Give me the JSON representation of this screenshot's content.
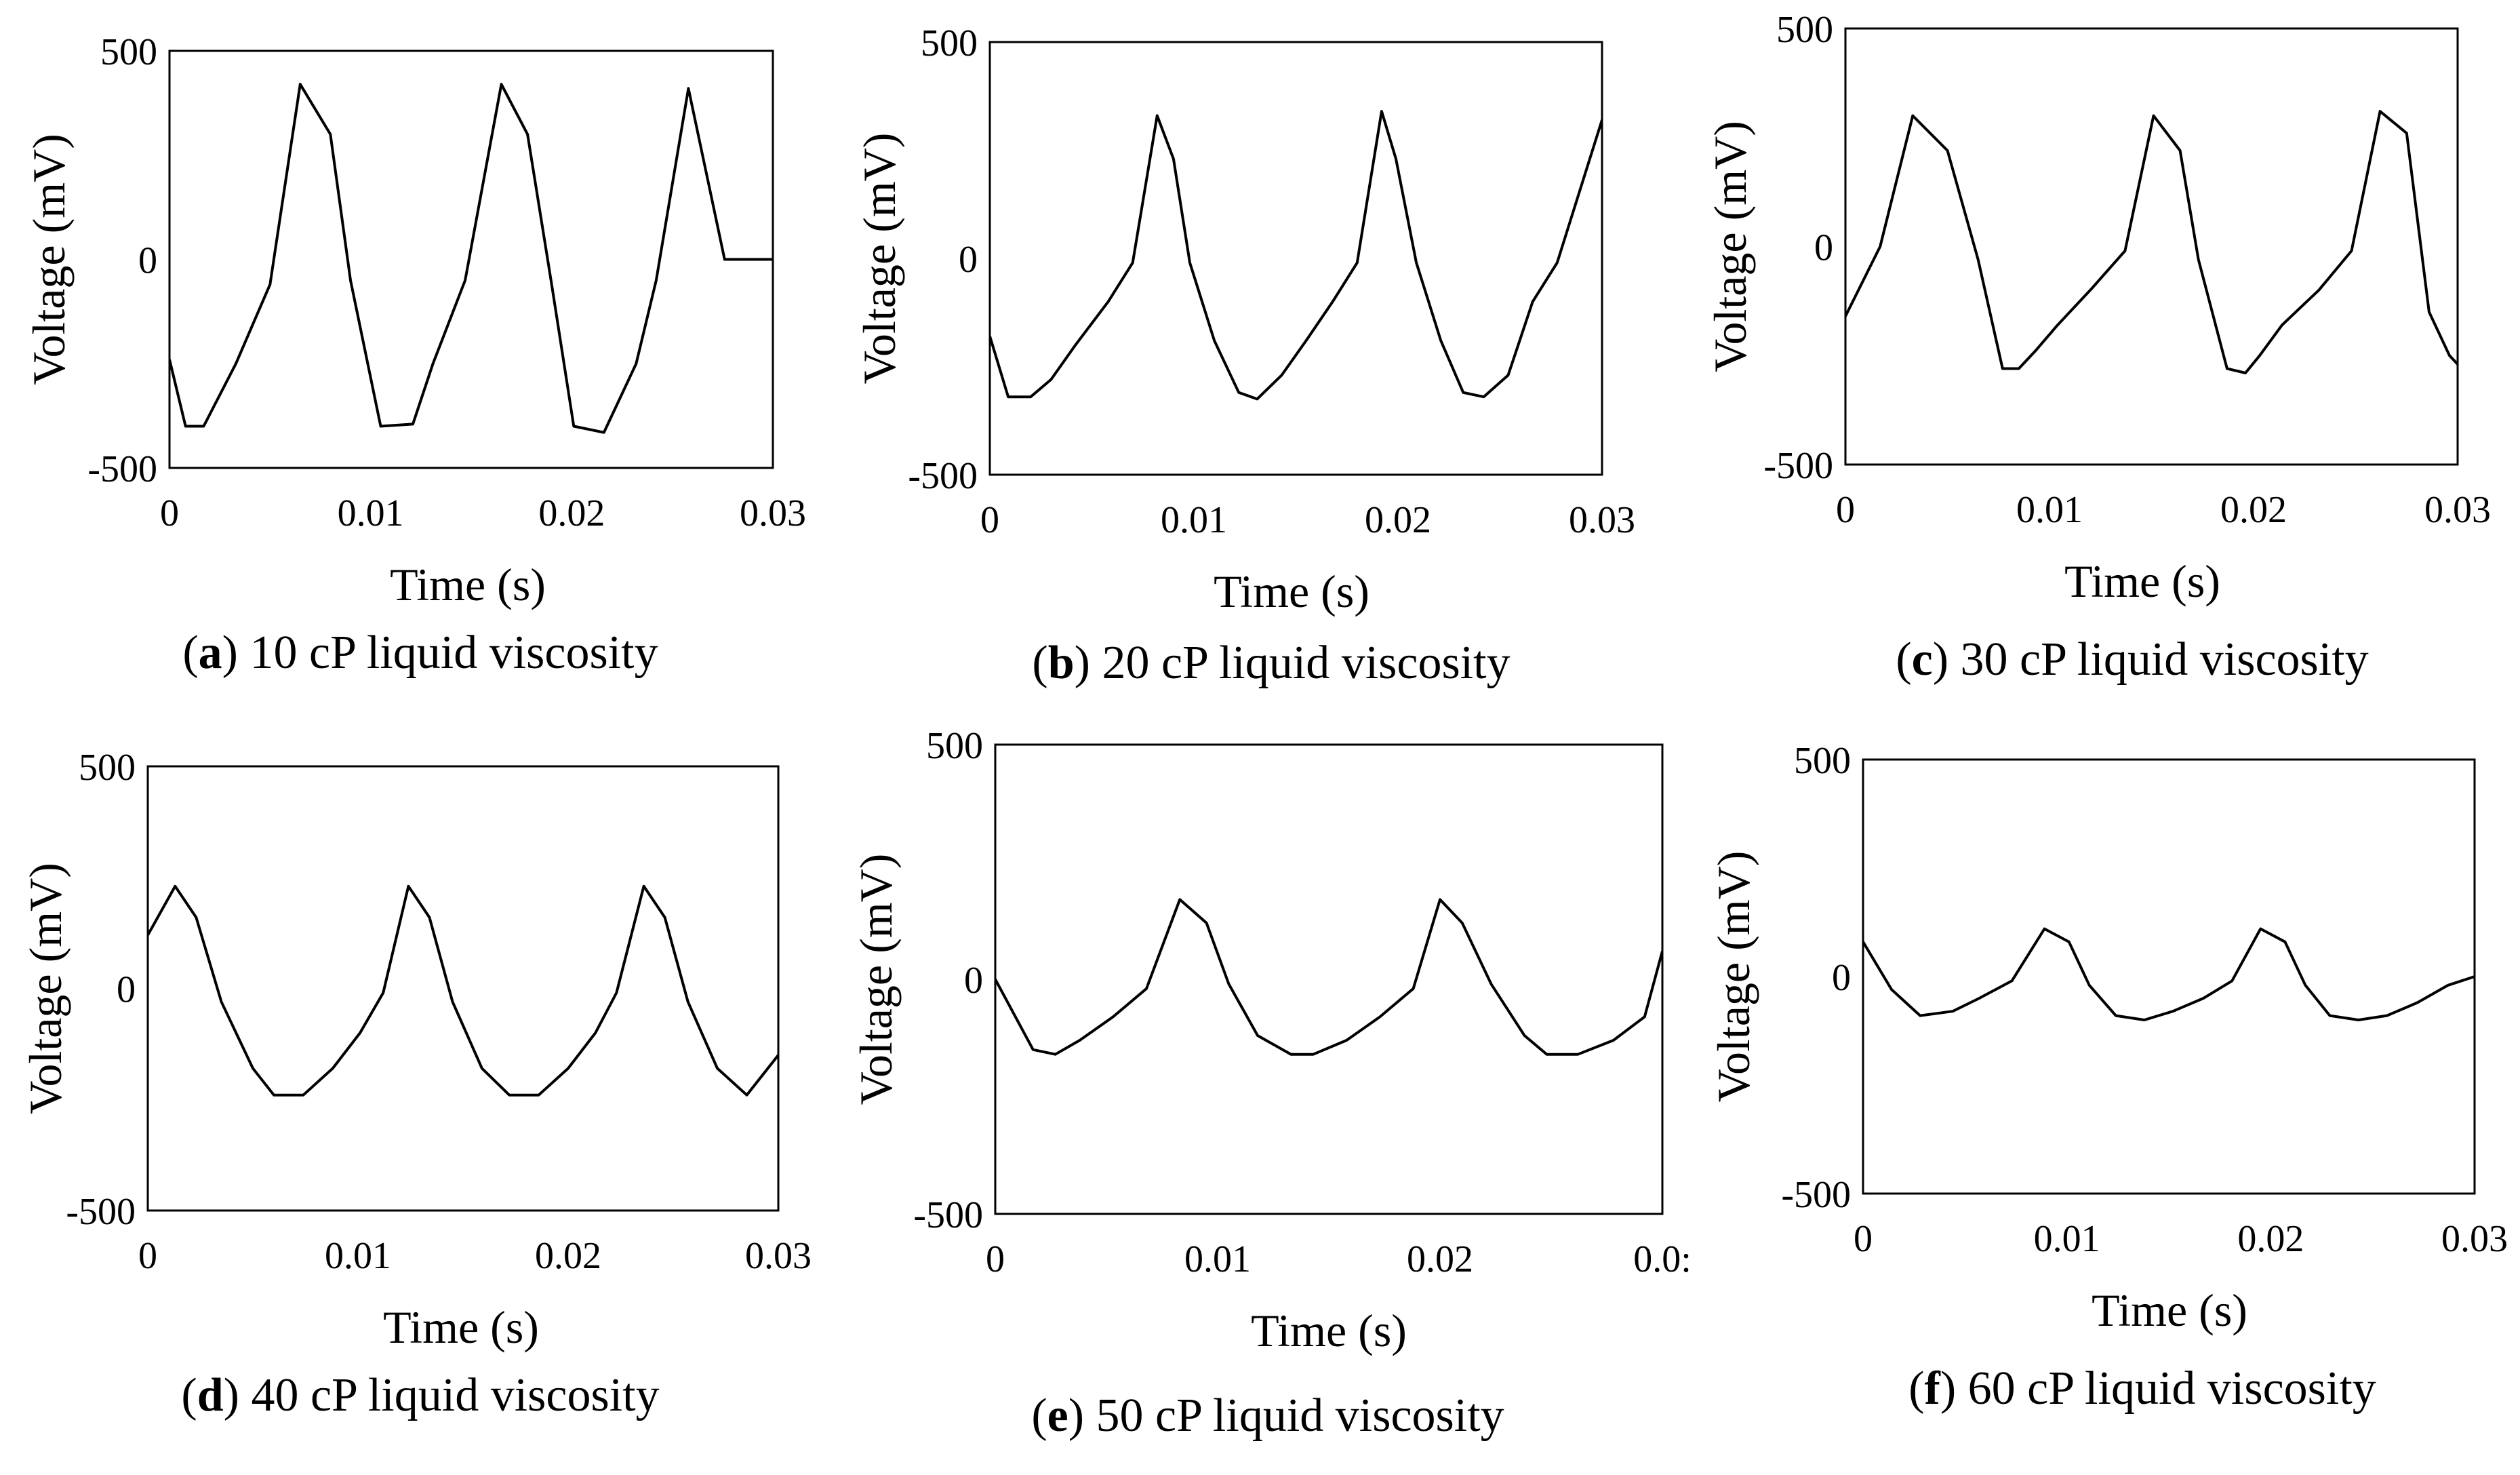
{
  "figure": {
    "colors": {
      "background": "#ffffff",
      "ink": "#000000"
    }
  },
  "chart_data": [
    {
      "id": "a",
      "type": "line",
      "caption_letter": "a",
      "caption_text": " 10 cP liquid viscosity",
      "xlabel": "Time (s)",
      "ylabel": "Voltage (mV)",
      "xlim": [
        0,
        0.03
      ],
      "ylim": [
        -500,
        500
      ],
      "xticks": [
        "0",
        "0.01",
        "0.02",
        "0.03"
      ],
      "yticks": [
        "500",
        "0",
        "-500"
      ],
      "x": [
        0,
        0.0008,
        0.0017,
        0.0033,
        0.005,
        0.0065,
        0.008,
        0.009,
        0.0105,
        0.0121,
        0.0131,
        0.0147,
        0.0165,
        0.0178,
        0.019,
        0.0201,
        0.0216,
        0.0232,
        0.0242,
        0.0258,
        0.0276,
        0.0289,
        0.03
      ],
      "y": [
        -240,
        -400,
        -400,
        -250,
        -60,
        420,
        300,
        -50,
        -400,
        -395,
        -250,
        -50,
        420,
        300,
        -60,
        -400,
        -415,
        -250,
        -50,
        410,
        0,
        0,
        0
      ]
    },
    {
      "id": "b",
      "type": "line",
      "caption_letter": "b",
      "caption_text": " 20 cP liquid viscosity",
      "xlabel": "Time (s)",
      "ylabel": "Voltage (mV)",
      "xlim": [
        0,
        0.03
      ],
      "ylim": [
        -500,
        500
      ],
      "xticks": [
        "0",
        "0.01",
        "0.02",
        "0.03"
      ],
      "yticks": [
        "500",
        "0",
        "-500"
      ],
      "x": [
        0,
        0.0009,
        0.002,
        0.003,
        0.0042,
        0.0058,
        0.007,
        0.0082,
        0.009,
        0.0098,
        0.011,
        0.0122,
        0.0131,
        0.0143,
        0.0155,
        0.0168,
        0.018,
        0.0192,
        0.0199,
        0.0209,
        0.0221,
        0.0232,
        0.0242,
        0.0254,
        0.0266,
        0.0278,
        0.03
      ],
      "y": [
        -180,
        -320,
        -320,
        -280,
        -200,
        -100,
        -10,
        330,
        230,
        -10,
        -190,
        -310,
        -325,
        -270,
        -190,
        -100,
        -10,
        340,
        230,
        -10,
        -190,
        -310,
        -320,
        -270,
        -100,
        -10,
        320
      ]
    },
    {
      "id": "c",
      "type": "line",
      "caption_letter": "c",
      "caption_text": " 30 cP liquid viscosity",
      "xlabel": "Time (s)",
      "ylabel": "Voltage (mV)",
      "xlim": [
        0,
        0.03
      ],
      "ylim": [
        -500,
        500
      ],
      "xticks": [
        "0",
        "0.01",
        "0.02",
        "0.03"
      ],
      "yticks": [
        "500",
        "0",
        "-500"
      ],
      "x": [
        0,
        0.0017,
        0.0033,
        0.005,
        0.0065,
        0.0077,
        0.0085,
        0.0093,
        0.0104,
        0.012,
        0.0137,
        0.0151,
        0.0164,
        0.0173,
        0.0187,
        0.0196,
        0.0203,
        0.0214,
        0.0232,
        0.0248,
        0.0262,
        0.0275,
        0.0286,
        0.0296,
        0.03
      ],
      "y": [
        -160,
        0,
        300,
        220,
        -30,
        -280,
        -280,
        -240,
        -180,
        -100,
        -10,
        300,
        220,
        -30,
        -280,
        -290,
        -250,
        -180,
        -100,
        -10,
        310,
        260,
        -150,
        -250,
        -270
      ]
    },
    {
      "id": "d",
      "type": "line",
      "caption_letter": "d",
      "caption_text": " 40 cP liquid viscosity",
      "xlabel": "Time (s)",
      "ylabel": "Voltage (mV)",
      "xlim": [
        0,
        0.03
      ],
      "ylim": [
        -500,
        500
      ],
      "xticks": [
        "0",
        "0.01",
        "0.02",
        "0.03"
      ],
      "yticks": [
        "500",
        "0",
        "-500"
      ],
      "x": [
        0,
        0.0013,
        0.0023,
        0.0035,
        0.005,
        0.006,
        0.0074,
        0.0088,
        0.0101,
        0.0112,
        0.0124,
        0.0134,
        0.0145,
        0.0159,
        0.0172,
        0.0186,
        0.02,
        0.0213,
        0.0223,
        0.0236,
        0.0246,
        0.0257,
        0.0271,
        0.0285,
        0.03
      ],
      "y": [
        120,
        230,
        160,
        -30,
        -180,
        -240,
        -240,
        -180,
        -100,
        -10,
        230,
        160,
        -30,
        -180,
        -240,
        -240,
        -180,
        -100,
        -10,
        230,
        160,
        -30,
        -180,
        -240,
        -150
      ]
    },
    {
      "id": "e",
      "type": "line",
      "caption_letter": "e",
      "caption_text": " 50 cP liquid viscosity",
      "xlabel": "Time (s)",
      "ylabel": "Voltage (mV)",
      "xlim": [
        0,
        0.03
      ],
      "ylim": [
        -500,
        500
      ],
      "xticks": [
        "0",
        "0.01",
        "0.02",
        "0.0:"
      ],
      "yticks": [
        "500",
        "0",
        "-500"
      ],
      "x": [
        0,
        0.0017,
        0.0027,
        0.0038,
        0.0053,
        0.0068,
        0.0083,
        0.0095,
        0.0105,
        0.0118,
        0.0133,
        0.0143,
        0.0158,
        0.0173,
        0.0188,
        0.02,
        0.021,
        0.0223,
        0.0238,
        0.0248,
        0.0262,
        0.0278,
        0.0292,
        0.03
      ],
      "y": [
        0,
        -150,
        -160,
        -130,
        -80,
        -20,
        170,
        120,
        -10,
        -120,
        -160,
        -160,
        -130,
        -80,
        -20,
        170,
        120,
        -10,
        -120,
        -160,
        -160,
        -130,
        -80,
        60
      ]
    },
    {
      "id": "f",
      "type": "line",
      "caption_letter": "f",
      "caption_text": " 60 cP liquid viscosity",
      "xlabel": "Time (s)",
      "ylabel": "Voltage (mV)",
      "xlim": [
        0,
        0.03
      ],
      "ylim": [
        -500,
        500
      ],
      "xticks": [
        "0",
        "0.01",
        "0.02",
        "0.03"
      ],
      "yticks": [
        "500",
        "0",
        "-500"
      ],
      "x": [
        0,
        0.0014,
        0.0028,
        0.0044,
        0.0057,
        0.0073,
        0.0089,
        0.0101,
        0.0111,
        0.0124,
        0.0138,
        0.0152,
        0.0167,
        0.0181,
        0.0195,
        0.0207,
        0.0217,
        0.0229,
        0.0243,
        0.0257,
        0.0272,
        0.0287,
        0.03
      ],
      "y": [
        80,
        -30,
        -90,
        -80,
        -50,
        -10,
        110,
        80,
        -20,
        -90,
        -100,
        -80,
        -50,
        -10,
        110,
        80,
        -20,
        -90,
        -100,
        -90,
        -60,
        -20,
        0
      ]
    }
  ]
}
